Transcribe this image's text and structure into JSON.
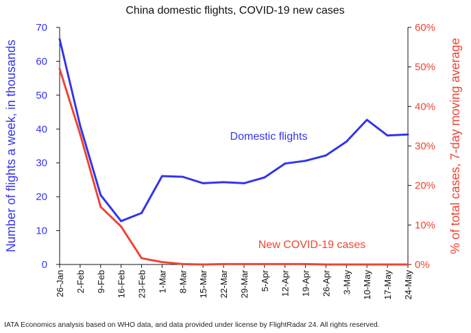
{
  "chart_data": {
    "type": "line",
    "title": "China domestic flights, COVID-19 new cases",
    "categories": [
      "26-Jan",
      "2-Feb",
      "9-Feb",
      "16-Feb",
      "23-Feb",
      "1-Mar",
      "8-Mar",
      "15-Mar",
      "22-Mar",
      "29-Mar",
      "5-Apr",
      "12-Apr",
      "19-Apr",
      "26-Apr",
      "3-May",
      "10-May",
      "17-May",
      "24-May"
    ],
    "left_axis": {
      "label": "Number of flights a week, in thousands",
      "ylim": [
        0,
        70
      ],
      "ticks": [
        "0",
        "10",
        "20",
        "30",
        "40",
        "50",
        "60",
        "70"
      ],
      "color": "#3333ee"
    },
    "right_axis": {
      "label": "% of total cases, 7-day moving average",
      "ylim": [
        0,
        60
      ],
      "ticks": [
        "0%",
        "10%",
        "20%",
        "30%",
        "40%",
        "50%",
        "60%"
      ],
      "color": "#ee4433"
    },
    "series": [
      {
        "name": "Domestic flights",
        "axis": "left",
        "color": "#3333ee",
        "values": [
          66.5,
          41,
          20.5,
          12.8,
          15.2,
          26.1,
          25.9,
          24,
          24.3,
          24,
          25.7,
          29.8,
          30.6,
          32.2,
          36.3,
          42.7,
          38.1,
          38.4
        ]
      },
      {
        "name": "New COVID-19 cases",
        "axis": "right",
        "color": "#ee4433",
        "values": [
          49.5,
          33,
          14.6,
          9.6,
          1.6,
          0.6,
          0.1,
          0,
          0.1,
          0.1,
          0.1,
          0.1,
          0.1,
          0,
          0,
          0,
          0,
          0
        ]
      }
    ],
    "grid": false,
    "legend": "inline labels"
  },
  "footnote": "IATA Economics analysis based on WHO data, and data provided under license by FlightRadar 24. All rights reserved."
}
